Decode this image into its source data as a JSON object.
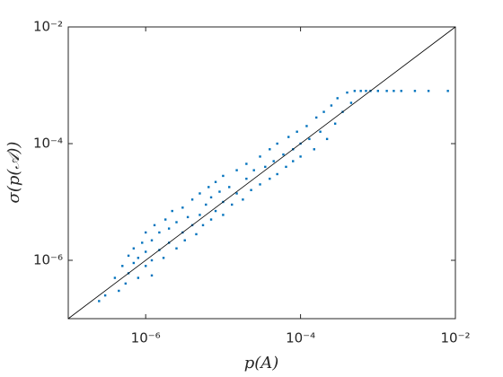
{
  "chart_data": {
    "type": "scatter",
    "xlabel": "p(A)",
    "ylabel": "σ(p(𝒜))",
    "log_x": true,
    "log_y": true,
    "xlim": [
      1e-07,
      0.01
    ],
    "ylim": [
      1e-07,
      0.01
    ],
    "xticks": [
      {
        "value": 1e-06,
        "label": "10⁻⁶"
      },
      {
        "value": 0.0001,
        "label": "10⁻⁴"
      },
      {
        "value": 0.01,
        "label": "10⁻²"
      }
    ],
    "yticks": [
      {
        "value": 1e-06,
        "label": "10⁻⁶"
      },
      {
        "value": 0.0001,
        "label": "10⁻⁴"
      },
      {
        "value": 0.01,
        "label": "10⁻²"
      }
    ],
    "reference_line": {
      "x": [
        1e-07,
        0.01
      ],
      "y": [
        1e-07,
        0.01
      ],
      "color": "#000000"
    },
    "series": [
      {
        "color": "#0072bd",
        "x": [
          3e-07,
          4e-07,
          4.5e-07,
          5e-07,
          5.5e-07,
          6e-07,
          6e-07,
          7e-07,
          7e-07,
          8e-07,
          8e-07,
          9e-07,
          1e-06,
          1e-06,
          1e-06,
          1.2e-06,
          1.2e-06,
          1.3e-06,
          1.5e-06,
          1.5e-06,
          1.7e-06,
          1.8e-06,
          2e-06,
          2e-06,
          2.2e-06,
          2.5e-06,
          2.5e-06,
          3e-06,
          3e-06,
          3.2e-06,
          3.5e-06,
          4e-06,
          4e-06,
          4.5e-06,
          5e-06,
          5e-06,
          5.5e-06,
          6e-06,
          6.5e-06,
          7e-06,
          7e-06,
          8e-06,
          8e-06,
          9e-06,
          1e-05,
          1e-05,
          1e-05,
          1.2e-05,
          1.3e-05,
          1.5e-05,
          1.5e-05,
          1.8e-05,
          2e-05,
          2e-05,
          2.3e-05,
          2.5e-05,
          3e-05,
          3e-05,
          3.5e-05,
          4e-05,
          4e-05,
          4.5e-05,
          5e-05,
          5e-05,
          6e-05,
          6.5e-05,
          7e-05,
          8e-05,
          8e-05,
          9e-05,
          0.0001,
          0.0001,
          0.00012,
          0.00013,
          0.00015,
          0.00016,
          0.00018,
          0.0002,
          0.00022,
          0.00025,
          0.00028,
          0.0003,
          0.00035,
          0.0004,
          0.00045,
          0.0005,
          0.0006,
          0.0007,
          0.0008,
          0.001,
          0.0013,
          0.0016,
          0.002,
          0.003,
          0.0045,
          0.008,
          1.2e-06,
          2.5e-07
        ],
        "values": [
          2.5e-07,
          5e-07,
          3e-07,
          8e-07,
          4e-07,
          1.2e-06,
          6e-07,
          9e-07,
          1.6e-06,
          5e-07,
          1.1e-06,
          2e-06,
          8e-07,
          1.4e-06,
          3e-06,
          1e-06,
          2.2e-06,
          4e-06,
          1.5e-06,
          3e-06,
          1.1e-06,
          5e-06,
          2e-06,
          3.5e-06,
          7e-06,
          1.6e-06,
          4.5e-06,
          3e-06,
          8e-06,
          2.2e-06,
          5.5e-06,
          4e-06,
          1.1e-05,
          2.8e-06,
          6e-06,
          1.4e-05,
          4e-06,
          9e-06,
          1.8e-05,
          5e-06,
          1.2e-05,
          7e-06,
          2.2e-05,
          1.5e-05,
          6e-06,
          1e-05,
          2.8e-05,
          1.8e-05,
          9e-06,
          3.5e-05,
          1.4e-05,
          1.1e-05,
          2.5e-05,
          4.5e-05,
          1.6e-05,
          3.5e-05,
          2e-05,
          6e-05,
          4e-05,
          2.5e-05,
          8e-05,
          5e-05,
          3e-05,
          0.0001,
          6.5e-05,
          4e-05,
          0.00013,
          8e-05,
          5e-05,
          0.00016,
          0.0001,
          6e-05,
          0.0002,
          0.00012,
          8e-05,
          0.00028,
          0.00016,
          0.00035,
          0.00012,
          0.00045,
          0.00022,
          0.0006,
          0.00035,
          0.00075,
          0.0005,
          0.0008,
          0.0008,
          0.0008,
          0.0008,
          0.0008,
          0.0008,
          0.0008,
          0.0008,
          0.0008,
          0.0008,
          0.0008,
          5.5e-07,
          2e-07
        ]
      }
    ]
  }
}
